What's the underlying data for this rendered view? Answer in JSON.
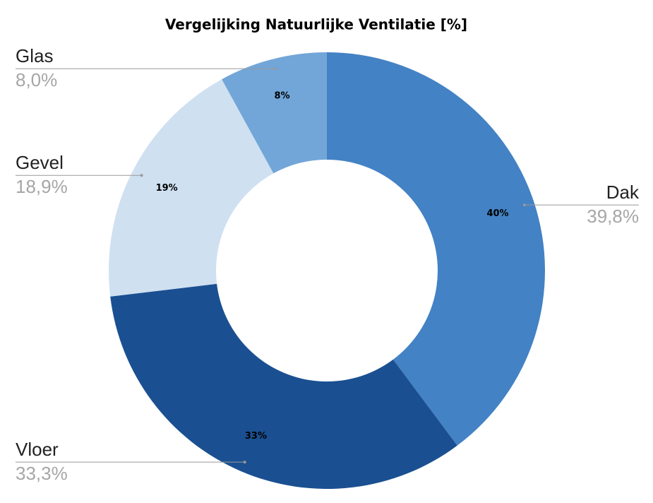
{
  "chart_data": {
    "type": "donut",
    "title": "Vergelijking Natuurlijke Ventilatie [%]",
    "categories": [
      "Dak",
      "Vloer",
      "Gevel",
      "Glas"
    ],
    "values": [
      39.8,
      33.3,
      18.9,
      8.0
    ],
    "value_labels": [
      "40%",
      "33%",
      "19%",
      "8%"
    ],
    "callout_labels": [
      "39,8%",
      "33,3%",
      "18,9%",
      "8,0%"
    ],
    "colors": [
      "#4382c4",
      "#1a5091",
      "#cfe0f1",
      "#72a6d8"
    ]
  }
}
